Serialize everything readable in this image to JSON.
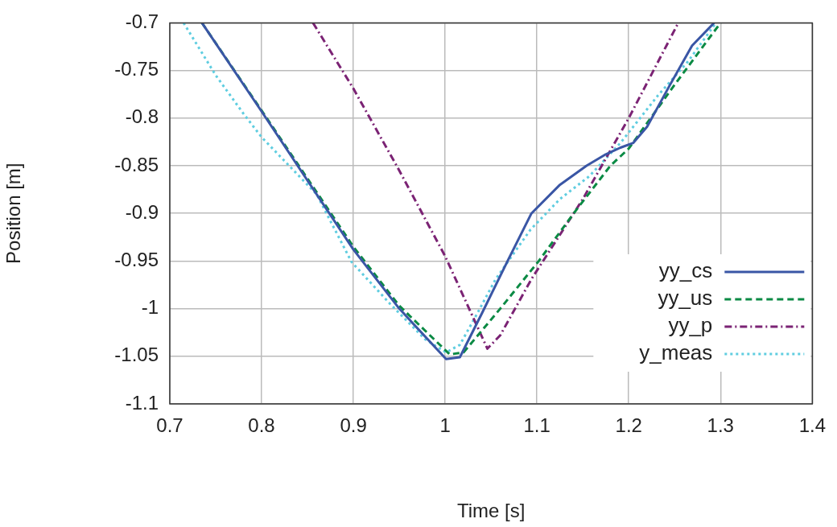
{
  "chart_data": {
    "type": "line",
    "xlabel": "Time [s]",
    "ylabel": "Position [m]",
    "xlim": [
      0.7,
      1.4
    ],
    "xticks": [
      0.7,
      0.8,
      0.9,
      1,
      1.1,
      1.2,
      1.3,
      1.4
    ],
    "ylim": [
      -1.1,
      -0.7
    ],
    "yticks": [
      -1.1,
      -1.05,
      -1,
      -0.95,
      -0.9,
      -0.85,
      -0.8,
      -0.75,
      -0.7
    ],
    "grid": true,
    "legend": "bottom right",
    "marker": "none",
    "series": [
      {
        "name": "yy_cs",
        "color": "#3a56a5",
        "line_style": "solid",
        "x": [
          0.735,
          0.8,
          0.9,
          0.95,
          1.001,
          1.016,
          1.04,
          1.068,
          1.094,
          1.125,
          1.154,
          1.175,
          1.191,
          1.205,
          1.22,
          1.245,
          1.269,
          1.293
        ],
        "values": [
          -0.7,
          -0.793,
          -0.938,
          -1.0,
          -1.053,
          -1.051,
          -1.005,
          -0.95,
          -0.9,
          -0.87,
          -0.85,
          -0.838,
          -0.831,
          -0.826,
          -0.809,
          -0.765,
          -0.724,
          -0.7
        ]
      },
      {
        "name": "yy_us",
        "color": "#0b8a44",
        "line_style": "dashed",
        "x": [
          0.735,
          0.8,
          0.9,
          0.95,
          1.005,
          1.02,
          1.06,
          1.102,
          1.14,
          1.18,
          1.2,
          1.25,
          1.3
        ],
        "values": [
          -0.7,
          -0.792,
          -0.935,
          -0.997,
          -1.048,
          -1.046,
          -1.0,
          -0.95,
          -0.9,
          -0.85,
          -0.832,
          -0.765,
          -0.7
        ]
      },
      {
        "name": "yy_p",
        "color": "#7b2374",
        "line_style": "dashdot",
        "x": [
          0.856,
          0.9,
          0.95,
          1.0,
          1.046,
          1.06,
          1.094,
          1.15,
          1.2,
          1.254
        ],
        "values": [
          -0.7,
          -0.769,
          -0.855,
          -0.945,
          -1.042,
          -1.028,
          -0.969,
          -0.885,
          -0.8,
          -0.7
        ]
      },
      {
        "name": "y_meas",
        "color": "#5fcde0",
        "line_style": "dotted",
        "x": [
          0.715,
          0.75,
          0.78,
          0.8,
          0.83,
          0.86,
          0.898,
          0.94,
          0.978,
          1.001,
          1.016,
          1.035,
          1.055,
          1.093,
          1.125,
          1.157,
          1.191,
          1.232,
          1.265,
          1.295
        ],
        "values": [
          -0.7,
          -0.755,
          -0.795,
          -0.82,
          -0.85,
          -0.88,
          -0.951,
          -0.995,
          -1.032,
          -1.046,
          -1.038,
          -1.005,
          -0.969,
          -0.917,
          -0.885,
          -0.861,
          -0.826,
          -0.776,
          -0.74,
          -0.7
        ]
      }
    ]
  }
}
